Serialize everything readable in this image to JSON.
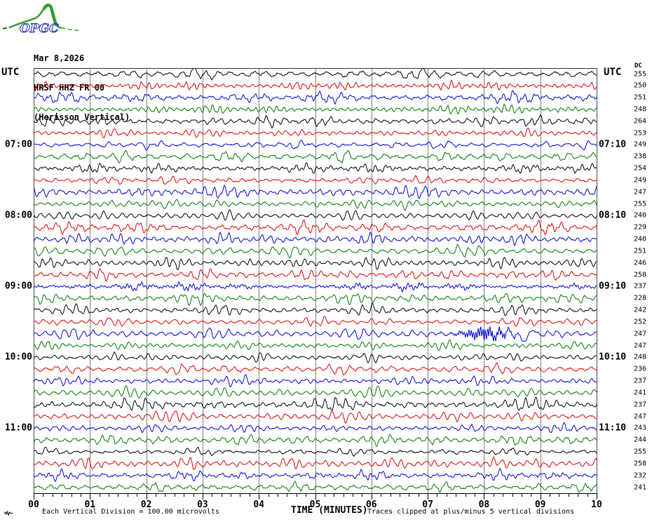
{
  "logo": {
    "text": "OPGC",
    "curve_color": "#2f9e2f",
    "text_color": "#2a35b8",
    "dash_color": "#1c5c2e"
  },
  "header": {
    "date": "Mar 8,2026",
    "station": "HRSF HHZ FR 00",
    "description": "(Herisson Vertical)"
  },
  "axes": {
    "utc_left": "UTC",
    "utc_right": "UTC",
    "dc_label": "DC",
    "x_title": "TIME (MINUTES)",
    "x_ticks": [
      "00",
      "01",
      "02",
      "03",
      "04",
      "05",
      "06",
      "07",
      "08",
      "09",
      "10"
    ],
    "left_hours": [
      {
        "row": 6,
        "label": "07:00"
      },
      {
        "row": 12,
        "label": "08:00"
      },
      {
        "row": 18,
        "label": "09:00"
      },
      {
        "row": 24,
        "label": "10:00"
      },
      {
        "row": 30,
        "label": "11:00"
      }
    ],
    "right_hours": [
      {
        "row": 6,
        "label": "07:10"
      },
      {
        "row": 12,
        "label": "08:10"
      },
      {
        "row": 18,
        "label": "09:10"
      },
      {
        "row": 24,
        "label": "10:10"
      },
      {
        "row": 30,
        "label": "11:10"
      }
    ]
  },
  "footer": {
    "scale_note": "Each Vertical Division =  100.00 microvolts",
    "clip_note": "Traces clipped at plus/minus 5 vertical divisions"
  },
  "palette": {
    "black": "#000000",
    "red": "#e00000",
    "blue": "#0000dd",
    "green": "#007700",
    "grid": "#7d7d7d",
    "axis": "#000000"
  },
  "chart_data": {
    "type": "line",
    "subtype": "helicorder-seismogram",
    "station": "HRSF HHZ FR 00",
    "channel_description": "(Herisson Vertical)",
    "date": "Mar 8,2026",
    "xlabel": "TIME (MINUTES)",
    "x_range_minutes": [
      0,
      10
    ],
    "row_duration_minutes": 10,
    "grid": "vertical lines each minute",
    "scale": "Each Vertical Division = 100.00 microvolts",
    "clipping": "Traces clipped at plus/minus 5 vertical divisions",
    "traces": [
      {
        "utc": "06:00",
        "color": "black",
        "dc": 255
      },
      {
        "utc": "06:10",
        "color": "red",
        "dc": 250
      },
      {
        "utc": "06:20",
        "color": "blue",
        "dc": 251
      },
      {
        "utc": "06:30",
        "color": "green",
        "dc": 248
      },
      {
        "utc": "06:40",
        "color": "black",
        "dc": 264
      },
      {
        "utc": "06:50",
        "color": "red",
        "dc": 253
      },
      {
        "utc": "07:00",
        "color": "blue",
        "dc": 249
      },
      {
        "utc": "07:10",
        "color": "green",
        "dc": 238
      },
      {
        "utc": "07:20",
        "color": "black",
        "dc": 254
      },
      {
        "utc": "07:30",
        "color": "red",
        "dc": 249
      },
      {
        "utc": "07:40",
        "color": "blue",
        "dc": 247
      },
      {
        "utc": "07:50",
        "color": "green",
        "dc": 255
      },
      {
        "utc": "08:00",
        "color": "black",
        "dc": 240
      },
      {
        "utc": "08:10",
        "color": "red",
        "dc": 229
      },
      {
        "utc": "08:20",
        "color": "blue",
        "dc": 240
      },
      {
        "utc": "08:30",
        "color": "green",
        "dc": 251
      },
      {
        "utc": "08:40",
        "color": "black",
        "dc": 246
      },
      {
        "utc": "08:50",
        "color": "red",
        "dc": 258
      },
      {
        "utc": "09:00",
        "color": "blue",
        "dc": 237
      },
      {
        "utc": "09:10",
        "color": "green",
        "dc": 228
      },
      {
        "utc": "09:20",
        "color": "black",
        "dc": 242
      },
      {
        "utc": "09:30",
        "color": "red",
        "dc": 252
      },
      {
        "utc": "09:40",
        "color": "blue",
        "dc": 247
      },
      {
        "utc": "09:50",
        "color": "green",
        "dc": 247
      },
      {
        "utc": "10:00",
        "color": "black",
        "dc": 248
      },
      {
        "utc": "10:10",
        "color": "red",
        "dc": 236
      },
      {
        "utc": "10:20",
        "color": "blue",
        "dc": 237
      },
      {
        "utc": "10:30",
        "color": "green",
        "dc": 241
      },
      {
        "utc": "10:40",
        "color": "black",
        "dc": 237
      },
      {
        "utc": "10:50",
        "color": "red",
        "dc": 247
      },
      {
        "utc": "11:00",
        "color": "blue",
        "dc": 243
      },
      {
        "utc": "11:10",
        "color": "green",
        "dc": 244
      },
      {
        "utc": "11:20",
        "color": "black",
        "dc": 255
      },
      {
        "utc": "11:30",
        "color": "red",
        "dc": 258
      },
      {
        "utc": "11:40",
        "color": "blue",
        "dc": 232
      },
      {
        "utc": "11:50",
        "color": "green",
        "dc": 241
      }
    ]
  }
}
